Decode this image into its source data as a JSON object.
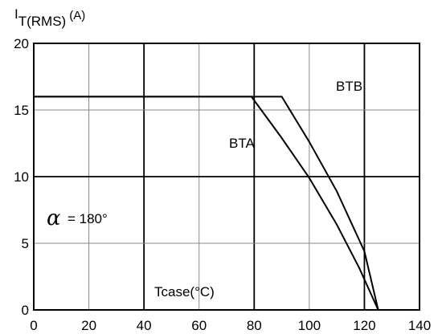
{
  "chart_data": {
    "type": "line",
    "ylabel_main": "I",
    "ylabel_sub": "T(RMS)",
    "ylabel_unit": "(A)",
    "xlabel": "Tcase(°C)",
    "xlim": [
      0,
      140
    ],
    "ylim": [
      0,
      20
    ],
    "x_ticks": [
      "0",
      "20",
      "40",
      "60",
      "80",
      "100",
      "120",
      "140"
    ],
    "y_ticks": [
      "0",
      "5",
      "10",
      "15",
      "20"
    ],
    "grid": true,
    "annotations": {
      "alpha_symbol": "α",
      "alpha_value": "= 180°"
    },
    "series": [
      {
        "name": "BTA",
        "x": [
          0,
          79,
          90,
          100,
          110,
          118,
          125
        ],
        "y": [
          16,
          16,
          12.9,
          9.9,
          6.4,
          3.2,
          0
        ]
      },
      {
        "name": "BTB",
        "x": [
          0,
          90,
          100,
          110,
          120,
          125
        ],
        "y": [
          16,
          16,
          12.6,
          8.9,
          4.4,
          0
        ]
      }
    ]
  }
}
